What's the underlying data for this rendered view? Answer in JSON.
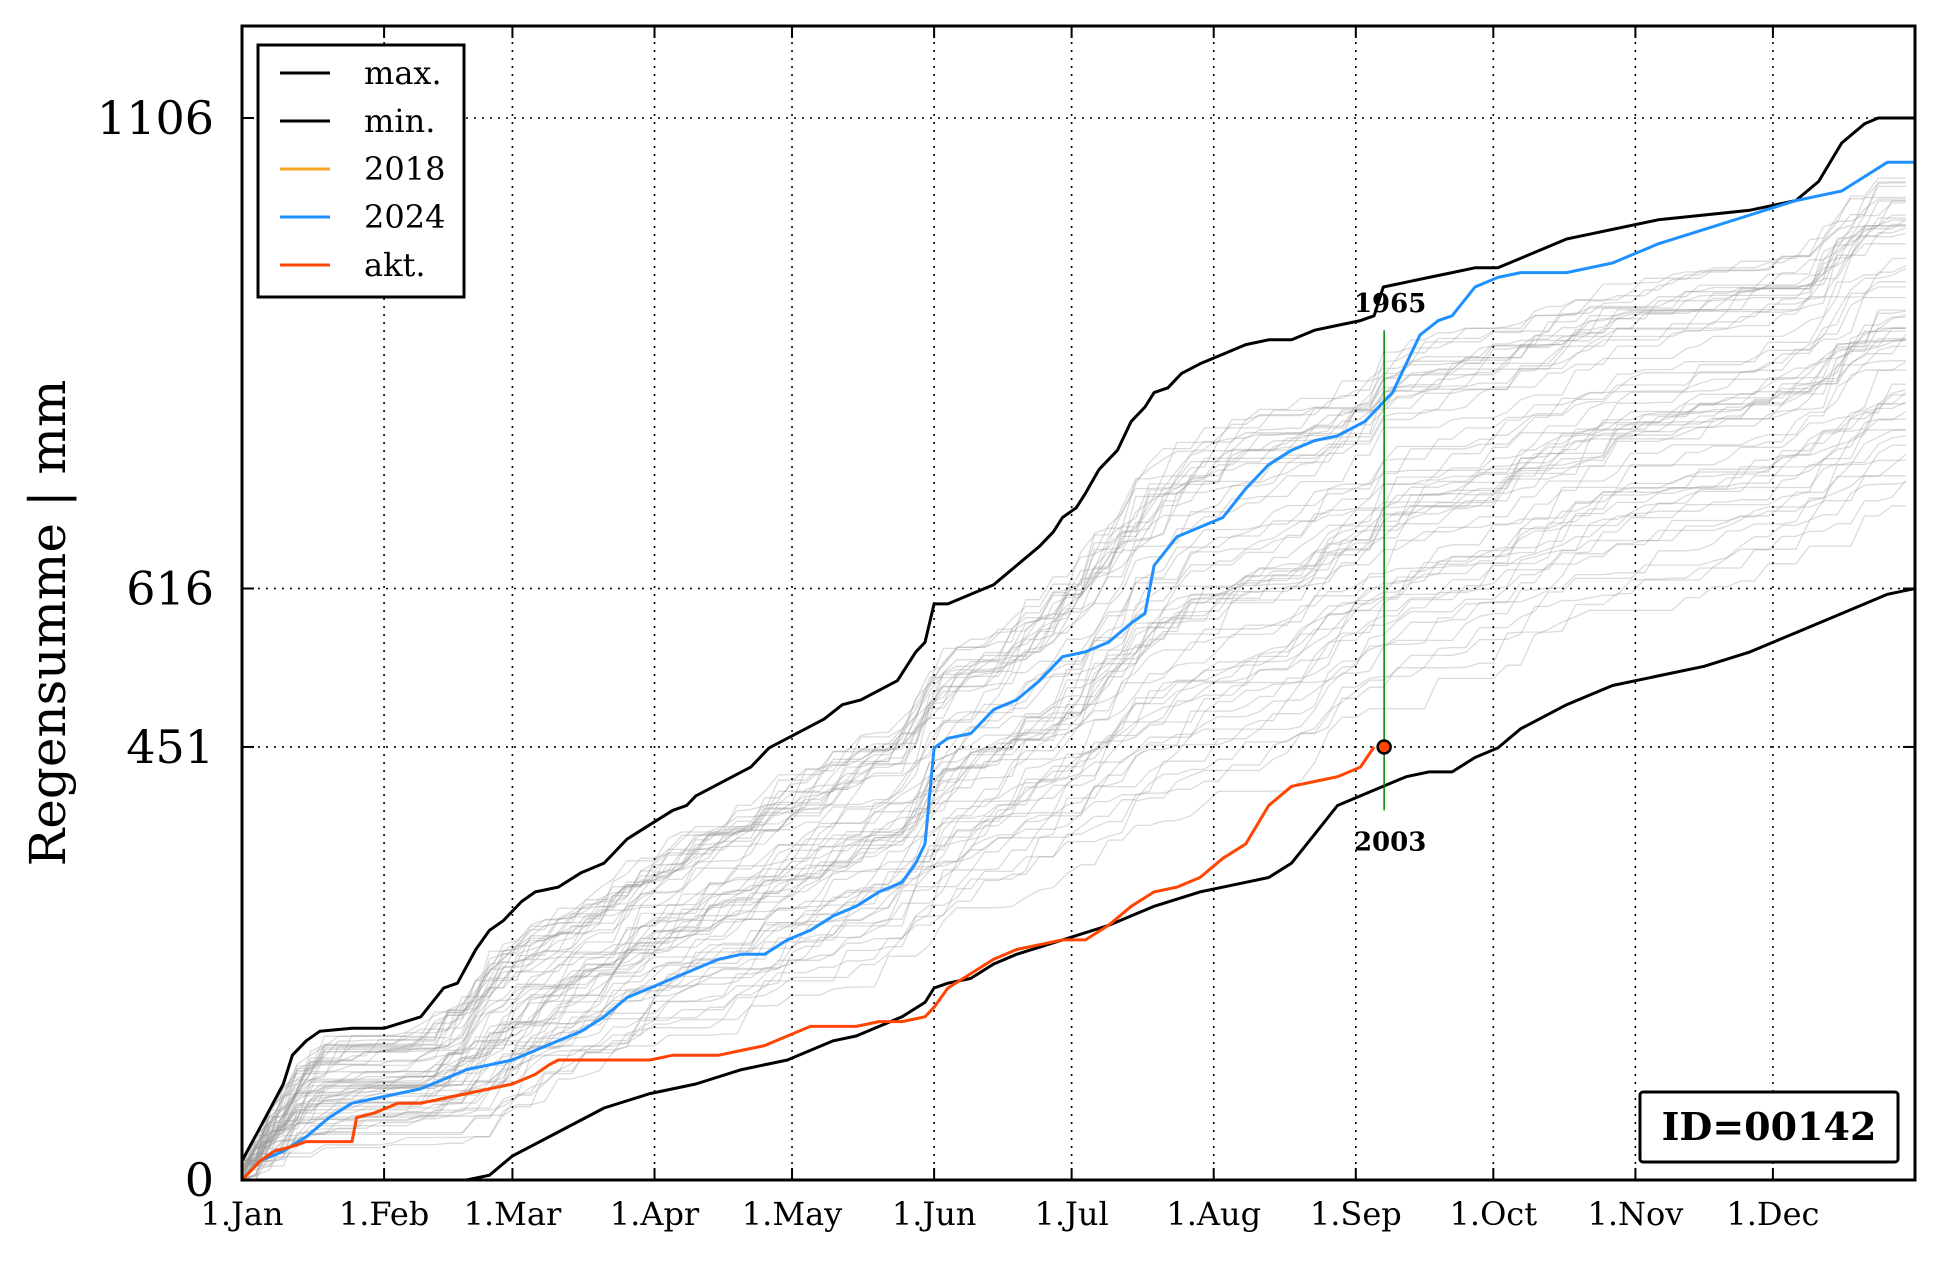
{
  "chart_data": {
    "type": "line",
    "ylabel": "Regensumme | mm",
    "xlabel": "",
    "title": "",
    "ylim": [
      0,
      1106
    ],
    "xlim": [
      1,
      366
    ],
    "x_unit": "day of year",
    "yticks": [
      0,
      451,
      616,
      1106
    ],
    "ytick_labels": [
      "0",
      "451",
      "616",
      "1106"
    ],
    "xticks": [
      1,
      32,
      60,
      91,
      121,
      152,
      182,
      213,
      244,
      274,
      305,
      335
    ],
    "xtick_labels": [
      "1.Jan",
      "1.Feb",
      "1.Mar",
      "1.Apr",
      "1.May",
      "1.Jun",
      "1.Jul",
      "1.Aug",
      "1.Sep",
      "1.Oct",
      "1.Nov",
      "1.Dec"
    ],
    "grid": true,
    "legend_placement": "top-left",
    "legend": [
      {
        "label": "max.",
        "color": "#000000"
      },
      {
        "label": "min.",
        "color": "#000000"
      },
      {
        "label": "2018",
        "color": "#f5a623"
      },
      {
        "label": "2024",
        "color": "#1e90ff"
      },
      {
        "label": "akt.",
        "color": "#ff4500"
      }
    ],
    "series": [
      {
        "name": "max.",
        "color": "#000000",
        "x": [
          1,
          5,
          10,
          12,
          15,
          18,
          25,
          32,
          40,
          45,
          48,
          52,
          55,
          58,
          60,
          62,
          65,
          70,
          75,
          80,
          85,
          90,
          95,
          98,
          100,
          104,
          108,
          112,
          116,
          120,
          124,
          128,
          132,
          136,
          140,
          144,
          148,
          150,
          152,
          155,
          160,
          165,
          170,
          175,
          178,
          180,
          183,
          185,
          188,
          192,
          195,
          198,
          200,
          203,
          206,
          210,
          215,
          220,
          225,
          230,
          235,
          240,
          245,
          248,
          250,
          255,
          260,
          265,
          270,
          275,
          280,
          285,
          290,
          295,
          300,
          310,
          320,
          330,
          340,
          345,
          350,
          355,
          358,
          366
        ],
        "y": [
          20,
          55,
          100,
          130,
          145,
          155,
          158,
          158,
          170,
          200,
          205,
          240,
          260,
          270,
          280,
          290,
          300,
          305,
          320,
          330,
          355,
          370,
          385,
          390,
          400,
          410,
          420,
          430,
          450,
          460,
          470,
          480,
          495,
          500,
          510,
          520,
          550,
          560,
          600,
          600,
          610,
          620,
          640,
          660,
          675,
          690,
          700,
          715,
          740,
          760,
          790,
          805,
          820,
          825,
          840,
          850,
          860,
          870,
          875,
          875,
          885,
          890,
          895,
          900,
          930,
          935,
          940,
          945,
          950,
          950,
          960,
          970,
          980,
          985,
          990,
          1000,
          1005,
          1010,
          1020,
          1040,
          1080,
          1100,
          1106,
          1106
        ]
      },
      {
        "name": "min.",
        "color": "#000000",
        "x": [
          1,
          10,
          20,
          30,
          40,
          50,
          55,
          60,
          70,
          80,
          90,
          100,
          110,
          120,
          130,
          135,
          140,
          145,
          150,
          152,
          155,
          160,
          165,
          170,
          180,
          190,
          200,
          210,
          220,
          225,
          230,
          235,
          240,
          245,
          250,
          255,
          260,
          265,
          270,
          275,
          280,
          290,
          300,
          310,
          320,
          330,
          340,
          350,
          360,
          366
        ],
        "y": [
          0,
          0,
          0,
          0,
          0,
          0,
          5,
          25,
          50,
          75,
          90,
          100,
          115,
          125,
          145,
          150,
          160,
          170,
          185,
          200,
          205,
          210,
          225,
          235,
          250,
          265,
          285,
          300,
          310,
          315,
          330,
          360,
          390,
          400,
          410,
          420,
          425,
          425,
          440,
          450,
          470,
          495,
          515,
          525,
          535,
          550,
          570,
          590,
          610,
          616
        ]
      },
      {
        "name": "2024",
        "color": "#1e90ff",
        "x": [
          1,
          5,
          10,
          15,
          20,
          25,
          30,
          35,
          40,
          45,
          50,
          55,
          60,
          65,
          70,
          75,
          80,
          85,
          90,
          95,
          100,
          105,
          110,
          115,
          120,
          125,
          130,
          135,
          140,
          145,
          148,
          150,
          152,
          155,
          160,
          165,
          170,
          175,
          180,
          185,
          190,
          195,
          198,
          200,
          205,
          210,
          215,
          220,
          225,
          230,
          235,
          240,
          244,
          246,
          250,
          252,
          255,
          258,
          262,
          265,
          270,
          275,
          280,
          285,
          290,
          300,
          310,
          320,
          330,
          340,
          345,
          350,
          355,
          360,
          366
        ],
        "y": [
          0,
          20,
          30,
          45,
          65,
          80,
          85,
          90,
          95,
          105,
          115,
          120,
          125,
          135,
          145,
          155,
          170,
          190,
          200,
          210,
          220,
          230,
          235,
          235,
          250,
          260,
          275,
          285,
          300,
          310,
          330,
          350,
          450,
          460,
          465,
          490,
          500,
          520,
          545,
          550,
          560,
          580,
          590,
          640,
          670,
          680,
          690,
          720,
          745,
          760,
          770,
          775,
          785,
          790,
          810,
          820,
          850,
          880,
          895,
          900,
          930,
          940,
          945,
          945,
          945,
          955,
          975,
          990,
          1005,
          1020,
          1025,
          1030,
          1045,
          1060,
          1060
        ]
      },
      {
        "name": "akt.",
        "color": "#ff4500",
        "x": [
          1,
          3,
          5,
          8,
          12,
          15,
          20,
          25,
          26,
          30,
          35,
          40,
          45,
          50,
          55,
          60,
          65,
          68,
          70,
          75,
          80,
          85,
          90,
          95,
          100,
          105,
          110,
          115,
          120,
          125,
          130,
          135,
          140,
          145,
          150,
          152,
          155,
          160,
          165,
          170,
          175,
          180,
          185,
          190,
          195,
          200,
          205,
          210,
          215,
          220,
          225,
          230,
          235,
          240,
          245,
          248
        ],
        "y": [
          0,
          10,
          20,
          30,
          35,
          40,
          40,
          40,
          65,
          70,
          80,
          80,
          85,
          90,
          95,
          100,
          110,
          120,
          125,
          125,
          125,
          125,
          125,
          130,
          130,
          130,
          135,
          140,
          150,
          160,
          160,
          160,
          165,
          165,
          170,
          180,
          200,
          215,
          230,
          240,
          245,
          250,
          250,
          265,
          285,
          300,
          305,
          315,
          335,
          350,
          390,
          410,
          415,
          420,
          430,
          451
        ]
      }
    ],
    "background_years": {
      "color": "#999999",
      "description_count": 60
    },
    "marker": {
      "x": 248,
      "y": 451,
      "color": "#ff4500"
    },
    "vertical_line": {
      "x": 248,
      "y_from": 385,
      "y_to": 885,
      "color": "#008000"
    },
    "annotations": [
      {
        "text": "1965",
        "x": 248,
        "y": 885,
        "position": "above"
      },
      {
        "text": "2003",
        "x": 248,
        "y": 385,
        "position": "below"
      }
    ],
    "id_box": {
      "text": "ID=00142",
      "placement": "bottom-right"
    }
  }
}
